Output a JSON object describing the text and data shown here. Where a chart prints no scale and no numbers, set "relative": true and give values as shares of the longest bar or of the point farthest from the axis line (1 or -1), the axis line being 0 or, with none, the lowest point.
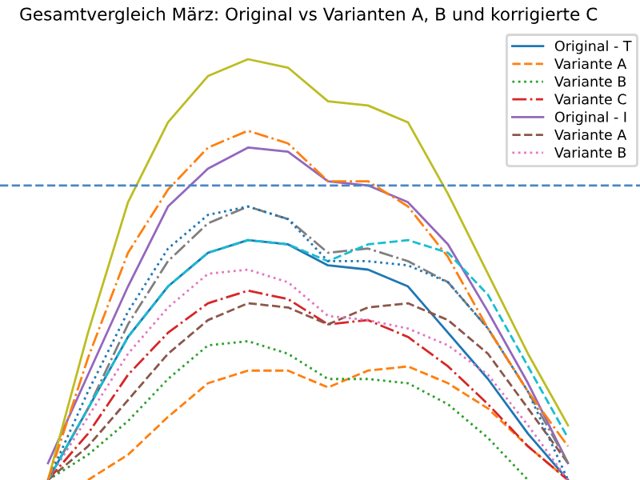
{
  "chart_data": {
    "type": "line",
    "title": "Gesamtvergleich März: Original vs Varianten A, B und korrigierte C",
    "relative": true,
    "legend": "top right",
    "categories": [
      null,
      null,
      null,
      null,
      null,
      null,
      null,
      null,
      null,
      null,
      null,
      null,
      null,
      null
    ],
    "series": [
      {
        "name": "Original - T",
        "color": "#1f77b4",
        "line_style": "solid",
        "values": [
          0,
          0.17,
          0.34,
          0.46,
          0.54,
          0.57,
          0.56,
          0.51,
          0.5,
          0.46,
          0.35,
          0.24,
          0.11,
          0
        ]
      },
      {
        "name": "Variante A",
        "color": "#ff7f0e",
        "line_style": "dashed",
        "values": [
          null,
          0,
          0.06,
          0.15,
          0.23,
          0.26,
          0.26,
          0.22,
          0.26,
          0.27,
          0.23,
          0.17,
          0.08,
          0
        ]
      },
      {
        "name": "Variante B",
        "color": "#2ca02c",
        "line_style": "dotted",
        "values": [
          0,
          0.06,
          0.14,
          0.24,
          0.32,
          0.33,
          0.3,
          0.24,
          0.24,
          0.23,
          0.18,
          0.1,
          0,
          null
        ]
      },
      {
        "name": "Variante C",
        "color": "#d62728",
        "line_style": "dashdot",
        "values": [
          0,
          0.11,
          0.25,
          0.35,
          0.42,
          0.45,
          0.43,
          0.37,
          0.38,
          0.34,
          0.27,
          0.18,
          0.08,
          0
        ]
      },
      {
        "name": "Original - I",
        "color": "#9467bd",
        "line_style": "solid",
        "values": [
          0.04,
          0.25,
          0.46,
          0.65,
          0.74,
          0.79,
          0.78,
          0.71,
          0.7,
          0.66,
          0.56,
          0.4,
          0.23,
          0.04
        ]
      },
      {
        "name": "Variante A",
        "color": "#8c564b",
        "line_style": "dashed",
        "values": [
          0,
          0.08,
          0.19,
          0.3,
          0.38,
          0.42,
          0.41,
          0.37,
          0.41,
          0.42,
          0.38,
          0.3,
          0.17,
          0.04
        ]
      },
      {
        "name": "Variante B",
        "color": "#e377c2",
        "line_style": "dotted",
        "values": [
          0,
          0.15,
          0.3,
          0.41,
          0.49,
          0.5,
          0.47,
          0.39,
          0.38,
          0.36,
          0.32,
          0.25,
          0.13,
          0
        ]
      },
      {
        "color": "#7f7f7f",
        "line_style": "dashdot",
        "values": [
          0,
          0.17,
          0.37,
          0.52,
          0.61,
          0.65,
          0.62,
          0.54,
          0.55,
          0.52,
          0.47,
          0.36,
          0.21,
          0.04
        ]
      },
      {
        "color": "#bcbd22",
        "line_style": "solid",
        "values": [
          0,
          0.35,
          0.66,
          0.85,
          0.96,
          1.0,
          0.98,
          0.9,
          0.89,
          0.85,
          0.68,
          0.49,
          0.3,
          0.13
        ]
      },
      {
        "color": "#17becf",
        "line_style": "dashed",
        "values": [
          0,
          0.17,
          0.34,
          0.46,
          0.54,
          0.57,
          0.56,
          0.52,
          0.56,
          0.57,
          0.54,
          0.44,
          0.27,
          0.1
        ]
      },
      {
        "color": "#1f77b4",
        "line_style": "dotted",
        "values": [
          0,
          0.21,
          0.4,
          0.55,
          0.63,
          0.65,
          0.62,
          0.52,
          0.52,
          0.51,
          0.47,
          0.36,
          0.21,
          0
        ]
      },
      {
        "color": "#ff7f0e",
        "line_style": "dashdot",
        "values": [
          0,
          0.29,
          0.54,
          0.69,
          0.79,
          0.83,
          0.8,
          0.71,
          0.71,
          0.65,
          0.53,
          0.36,
          0.21,
          0.08
        ]
      }
    ],
    "ref_lines": [
      {
        "axis": "y",
        "value": 0.7,
        "color": "#4a86c4",
        "line_style": "dashed"
      }
    ]
  }
}
